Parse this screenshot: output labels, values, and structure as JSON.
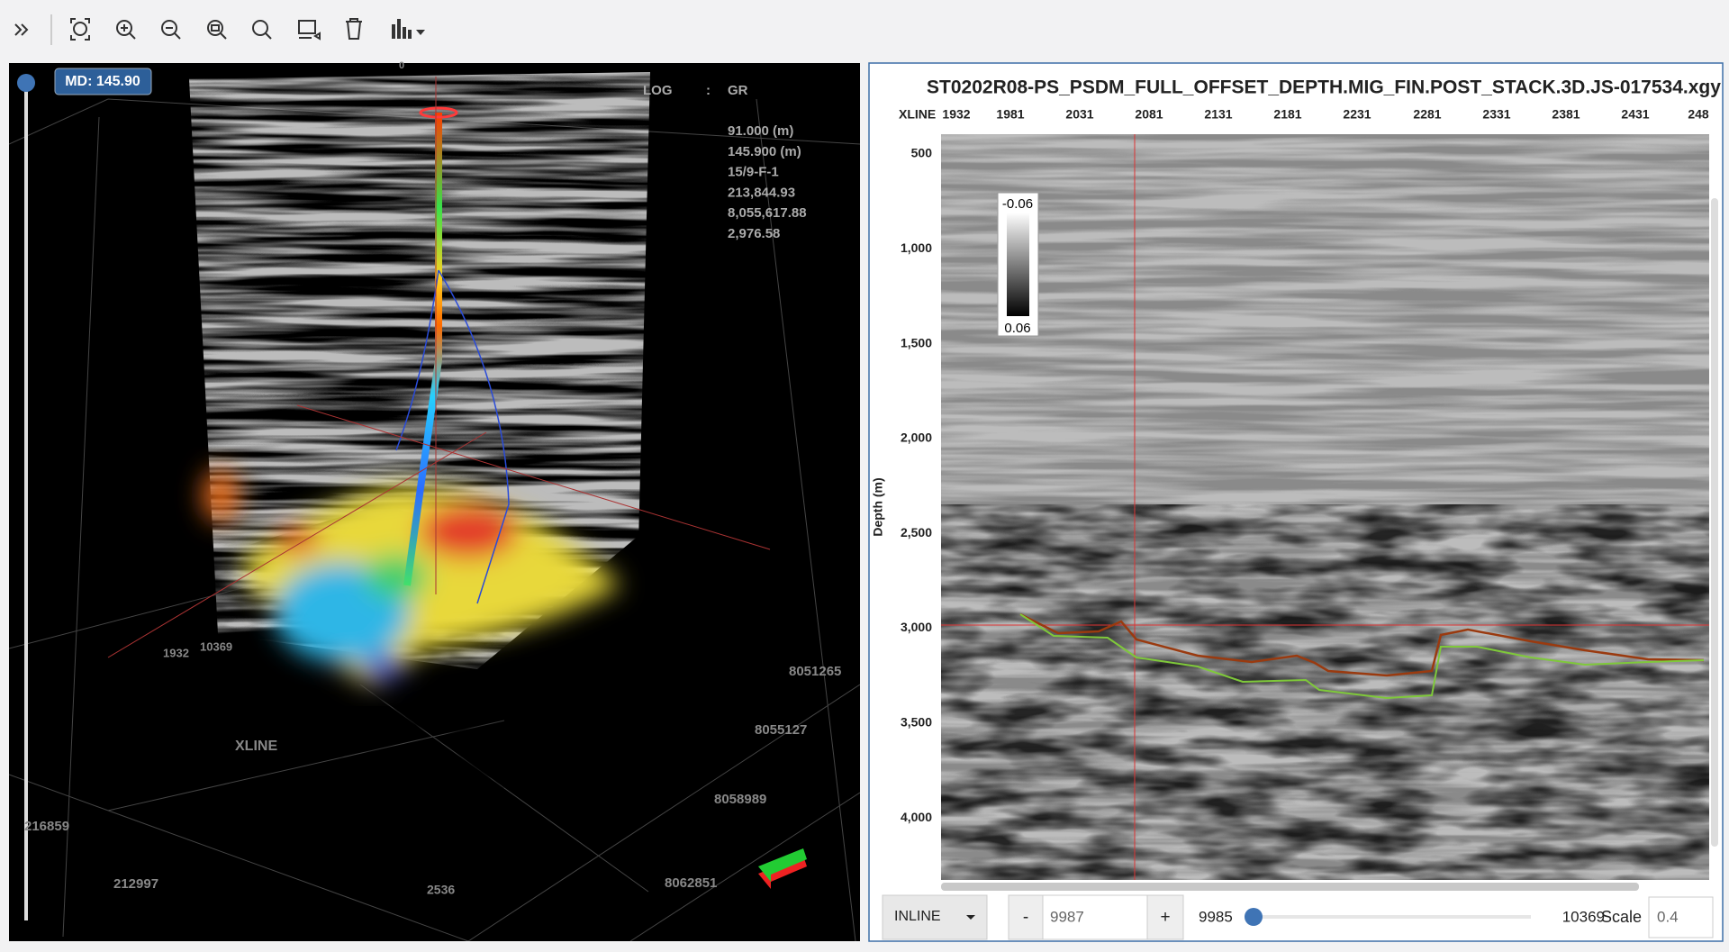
{
  "view3d": {
    "md_label": "MD: 145.90",
    "log_label": "LOG",
    "log_sep": ":",
    "log_name": "GR",
    "info": [
      "91.000 (m)",
      "145.900 (m)",
      "15/9-F-1",
      "213,844.93",
      "8,055,617.88",
      "2,976.58"
    ],
    "axis_labels": [
      "0",
      "1932",
      "10369",
      "XLINE",
      "216859",
      "212997",
      "2536",
      "8051265",
      "8055127",
      "8058989",
      "8062851"
    ]
  },
  "section": {
    "title": "ST0202R08-PS_PSDM_FULL_OFFSET_DEPTH.MIG_FIN.POST_STACK.3D.JS-017534.xgy",
    "xline_label": "XLINE",
    "xline_ticks": [
      "1932",
      "1981",
      "2031",
      "2081",
      "2131",
      "2181",
      "2231",
      "2281",
      "2331",
      "2381",
      "2431",
      "248"
    ],
    "depth_label": "Depth (m)",
    "depth_ticks": [
      "500",
      "1,000",
      "1,500",
      "2,000",
      "2,500",
      "3,000",
      "3,500",
      "4,000"
    ],
    "colorbar": {
      "top": "-0.06",
      "bottom": "0.06"
    }
  },
  "controls": {
    "direction": "INLINE",
    "minus": "-",
    "value": "9987",
    "plus": "+",
    "slider_min": "9985",
    "slider_max": "10369",
    "scale_label": "Scale",
    "scale_value": "0.4"
  }
}
